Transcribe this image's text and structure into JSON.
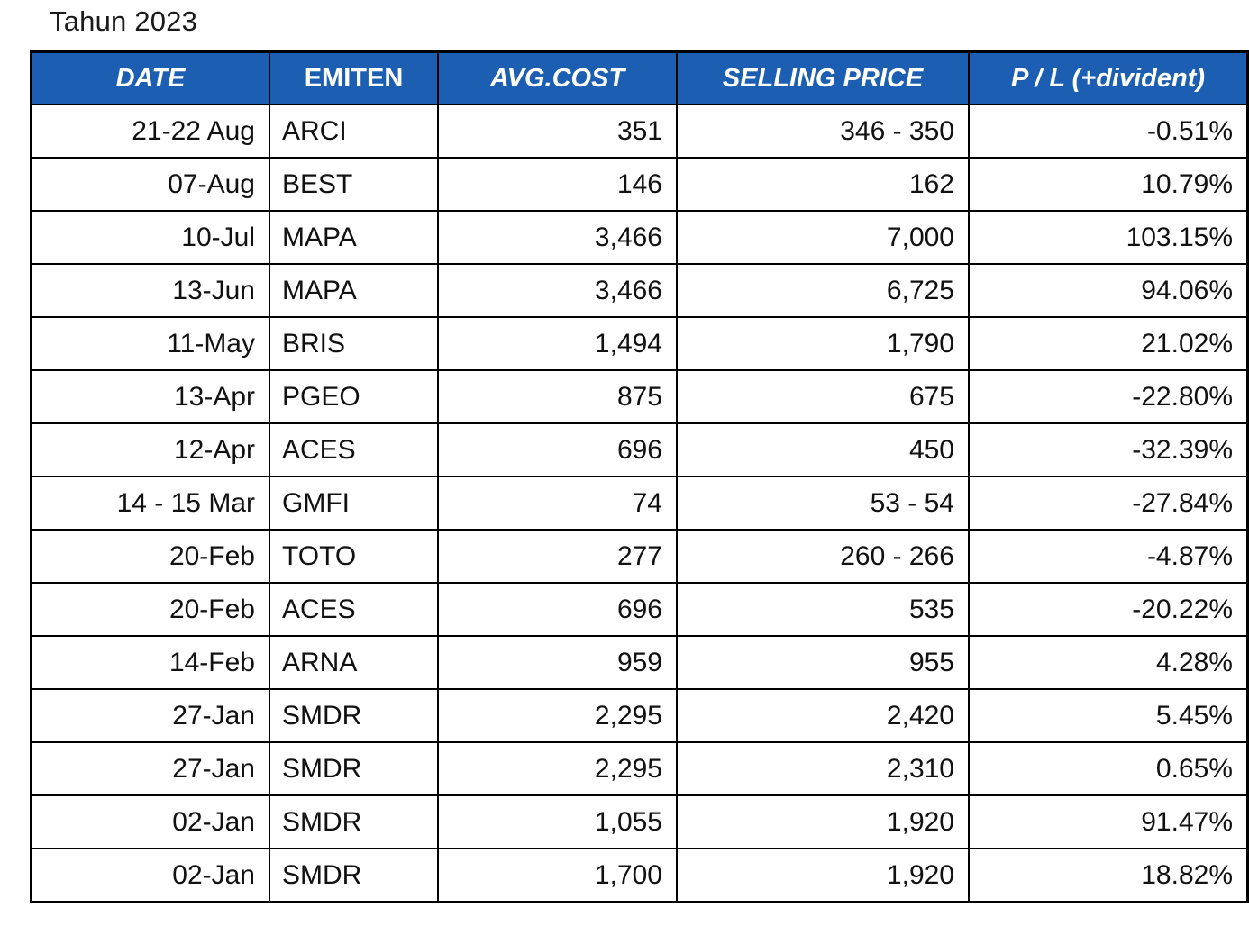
{
  "title": "Tahun 2023",
  "colors": {
    "header_bg": "#1B5EB2",
    "header_text": "#FFFFFF",
    "border": "#000000",
    "cell_bg": "#FFFFFF",
    "cell_text": "#111111"
  },
  "table": {
    "columns": [
      {
        "key": "date",
        "label": "DATE",
        "italic": true
      },
      {
        "key": "emiten",
        "label": "EMITEN",
        "italic": false
      },
      {
        "key": "avg-cost",
        "label": "AVG.COST",
        "italic": true
      },
      {
        "key": "selling-price",
        "label": "SELLING PRICE",
        "italic": true
      },
      {
        "key": "pl-divident",
        "label": "P / L (+divident)",
        "italic": true
      }
    ],
    "rows": [
      [
        "21-22 Aug",
        "ARCI",
        "351",
        "346 - 350",
        "-0.51%"
      ],
      [
        "07-Aug",
        "BEST",
        "146",
        "162",
        "10.79%"
      ],
      [
        "10-Jul",
        "MAPA",
        "3,466",
        "7,000",
        "103.15%"
      ],
      [
        "13-Jun",
        "MAPA",
        "3,466",
        "6,725",
        "94.06%"
      ],
      [
        "11-May",
        "BRIS",
        "1,494",
        "1,790",
        "21.02%"
      ],
      [
        "13-Apr",
        "PGEO",
        "875",
        "675",
        "-22.80%"
      ],
      [
        "12-Apr",
        "ACES",
        "696",
        "450",
        "-32.39%"
      ],
      [
        "14 - 15 Mar",
        "GMFI",
        "74",
        "53 - 54",
        "-27.84%"
      ],
      [
        "20-Feb",
        "TOTO",
        "277",
        "260 - 266",
        "-4.87%"
      ],
      [
        "20-Feb",
        "ACES",
        "696",
        "535",
        "-20.22%"
      ],
      [
        "14-Feb",
        "ARNA",
        "959",
        "955",
        "4.28%"
      ],
      [
        "27-Jan",
        "SMDR",
        "2,295",
        "2,420",
        "5.45%"
      ],
      [
        "27-Jan",
        "SMDR",
        "2,295",
        "2,310",
        "0.65%"
      ],
      [
        "02-Jan",
        "SMDR",
        "1,055",
        "1,920",
        "91.47%"
      ],
      [
        "02-Jan",
        "SMDR",
        "1,700",
        "1,920",
        "18.82%"
      ]
    ]
  }
}
